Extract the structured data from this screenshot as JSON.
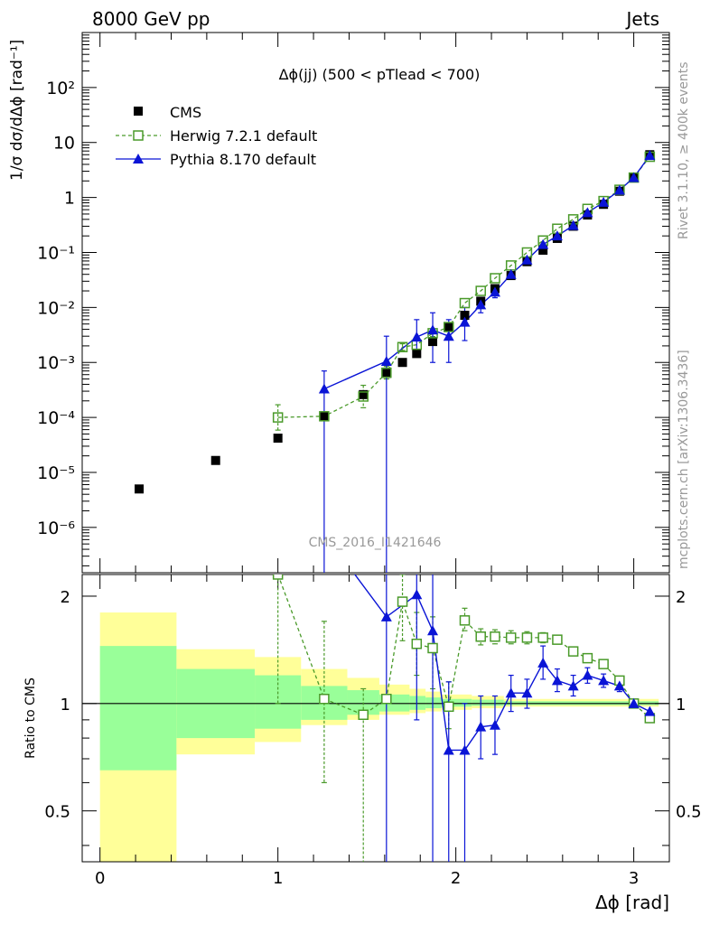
{
  "header": {
    "left_label": "8000 GeV pp",
    "right_label": "Jets"
  },
  "side_labels": {
    "rivet": "Rivet 3.1.10, ≥ 400k events",
    "mcplots": "mcplots.cern.ch [arXiv:1306.3436]"
  },
  "analysis_id": "CMS_2016_I1421646",
  "colors": {
    "data": "#000000",
    "herwig": "#4a9a2a",
    "pythia": "#0a14d6",
    "band_outer": "#ffff99",
    "band_inner": "#99ff99"
  },
  "chart_data": {
    "type": "line",
    "title": "Δϕ(jj) (500 < pTlead <  700)",
    "xlabel": "Δϕ [rad]",
    "ylabel": "1/σ dσ/dΔϕ [rad⁻¹]",
    "ratio_ylabel": "Ratio to CMS",
    "xlim": [
      -0.1,
      3.2
    ],
    "ylim": [
      1.5e-07,
      1000
    ],
    "yscale": "log",
    "ratio_ylim": [
      0.36,
      2.3
    ],
    "x_ticks": [
      "0",
      "1",
      "2",
      "3"
    ],
    "y_ticks": [
      "10⁻⁶",
      "10⁻⁵",
      "10⁻⁴",
      "10⁻³",
      "10⁻²",
      "10⁻¹",
      "1",
      "10",
      "10²"
    ],
    "ratio_ticks": [
      "0.5",
      "1",
      "2"
    ],
    "legend_position": "top-left",
    "series": [
      {
        "name": "CMS",
        "x": [
          0.22,
          0.65,
          1.0,
          1.26,
          1.48,
          1.61,
          1.7,
          1.78,
          1.87,
          1.96,
          2.05,
          2.14,
          2.22,
          2.31,
          2.4,
          2.49,
          2.57,
          2.66,
          2.74,
          2.83,
          2.92,
          3.0,
          3.09
        ],
        "values": [
          5e-06,
          1.65e-05,
          4.2e-05,
          0.000105,
          0.00026,
          0.00063,
          0.001,
          0.00145,
          0.0024,
          0.0045,
          0.0072,
          0.013,
          0.022,
          0.038,
          0.068,
          0.11,
          0.18,
          0.3,
          0.48,
          0.75,
          1.3,
          2.3,
          6.0
        ]
      },
      {
        "name": "Herwig 7.2.1 default",
        "x": [
          1.0,
          1.26,
          1.48,
          1.61,
          1.7,
          1.78,
          1.87,
          1.96,
          2.05,
          2.14,
          2.22,
          2.31,
          2.4,
          2.49,
          2.57,
          2.66,
          2.74,
          2.83,
          2.92,
          3.0,
          3.09
        ],
        "values": [
          0.0001,
          0.000105,
          0.00024,
          0.00065,
          0.0019,
          0.0021,
          0.0034,
          0.0044,
          0.012,
          0.02,
          0.034,
          0.058,
          0.1,
          0.165,
          0.27,
          0.4,
          0.62,
          0.86,
          1.38,
          2.3,
          5.5
        ],
        "ratio": [
          2.3,
          1.03,
          0.93,
          1.03,
          1.93,
          1.47,
          1.43,
          0.98,
          1.71,
          1.54,
          1.54,
          1.53,
          1.53,
          1.53,
          1.51,
          1.4,
          1.34,
          1.29,
          1.16,
          1.0,
          0.91
        ]
      },
      {
        "name": "Pythia 8.170 default",
        "x": [
          1.26,
          1.61,
          1.78,
          1.87,
          1.96,
          2.05,
          2.14,
          2.22,
          2.31,
          2.4,
          2.49,
          2.57,
          2.66,
          2.74,
          2.83,
          2.92,
          3.0,
          3.09
        ],
        "values": [
          0.00033,
          0.00105,
          0.0029,
          0.0039,
          0.003,
          0.0054,
          0.0112,
          0.019,
          0.04,
          0.073,
          0.14,
          0.2,
          0.31,
          0.53,
          0.82,
          1.36,
          2.3,
          5.8
        ],
        "ratio": [
          3.0,
          1.75,
          2.02,
          1.6,
          0.74,
          0.74,
          0.86,
          0.87,
          1.07,
          1.07,
          1.3,
          1.16,
          1.12,
          1.2,
          1.16,
          1.12,
          1.0,
          0.95
        ]
      }
    ]
  }
}
